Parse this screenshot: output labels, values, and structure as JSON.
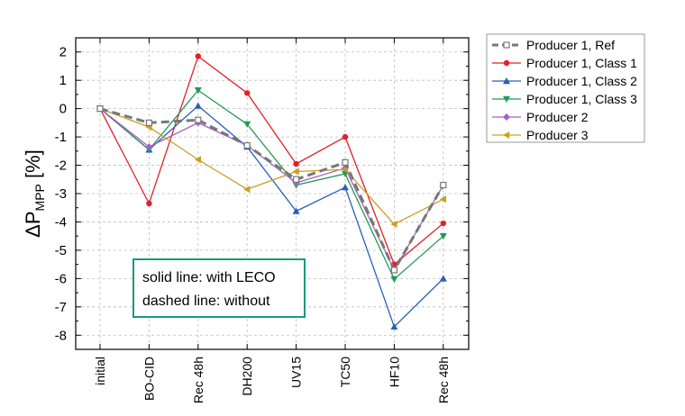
{
  "chart_data": {
    "type": "line",
    "categories": [
      "initial",
      "BO-CID",
      "Rec 48h",
      "DH200",
      "UV15",
      "TC50",
      "HF10",
      "Rec 48h"
    ],
    "ylabel_main": "ΔP",
    "ylabel_sub": "MPP",
    "ylabel_unit": " [%]",
    "ylim": [
      -8.5,
      2.5
    ],
    "yticks": [
      2,
      1,
      0,
      -1,
      -2,
      -3,
      -4,
      -5,
      -6,
      -7,
      -8
    ],
    "ytick_labels": [
      "2",
      "1",
      "0",
      "-1",
      "-2",
      "-3",
      "-4",
      "-5",
      "-6",
      "-7",
      "-8"
    ],
    "grid": "dashed",
    "legend_position": "outside-right",
    "annotation": [
      "solid line: with LECO",
      "dashed line: without"
    ],
    "annotation_color": "#1a9a78",
    "series": [
      {
        "name": "Producer 1, Ref",
        "color": "#777777",
        "marker": "square-open",
        "dashed": true,
        "values": [
          0,
          -0.5,
          -0.4,
          -1.3,
          -2.5,
          -1.9,
          -5.7,
          -2.7
        ]
      },
      {
        "name": "Producer 1, Class 1",
        "color": "#e0212a",
        "marker": "circle",
        "dashed": false,
        "values": [
          0,
          -3.35,
          1.85,
          0.55,
          -1.95,
          -1.0,
          -5.5,
          -4.05
        ]
      },
      {
        "name": "Producer 1, Class 2",
        "color": "#2a5fb8",
        "marker": "triangle-up",
        "dashed": false,
        "values": [
          0,
          -1.45,
          0.1,
          -1.35,
          -3.62,
          -2.78,
          -7.7,
          -6.0
        ]
      },
      {
        "name": "Producer 1, Class 3",
        "color": "#1f9a56",
        "marker": "triangle-down",
        "dashed": false,
        "values": [
          0,
          -1.45,
          0.65,
          -0.55,
          -2.7,
          -2.3,
          -6.02,
          -4.5
        ]
      },
      {
        "name": "Producer 2",
        "color": "#a860c8",
        "marker": "diamond",
        "dashed": false,
        "values": [
          0,
          -1.35,
          -0.5,
          -1.3,
          -2.62,
          -2.1,
          -5.7,
          -2.7
        ]
      },
      {
        "name": "Producer 3",
        "color": "#c9a020",
        "marker": "triangle-left",
        "dashed": false,
        "values": [
          0,
          -0.65,
          -1.8,
          -2.85,
          -2.22,
          -2.15,
          -4.08,
          -3.2
        ]
      }
    ]
  }
}
